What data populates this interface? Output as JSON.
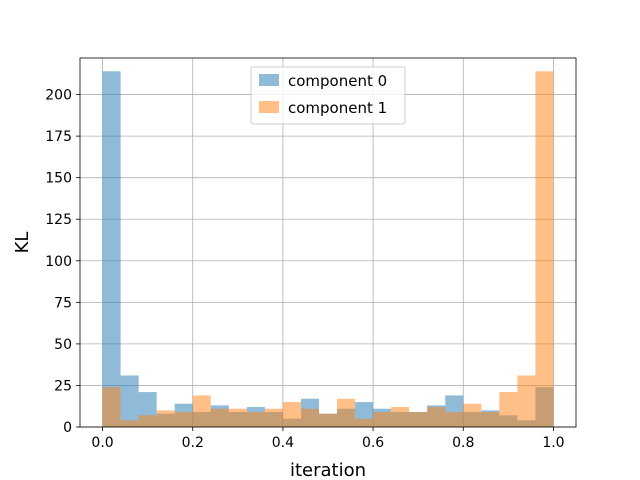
{
  "chart_data": {
    "type": "bar",
    "title": "",
    "xlabel": "iteration",
    "ylabel": "KL",
    "xlim": [
      -0.05,
      1.05
    ],
    "ylim": [
      0,
      222
    ],
    "grid": true,
    "legend_position": "top-center",
    "bin_edges": [
      0.0,
      0.04,
      0.08,
      0.12,
      0.16,
      0.2,
      0.24,
      0.28,
      0.32,
      0.36,
      0.4,
      0.44,
      0.48,
      0.52,
      0.56,
      0.6,
      0.64,
      0.68,
      0.72,
      0.76,
      0.8,
      0.84,
      0.88,
      0.92,
      0.96,
      1.0
    ],
    "x_ticks": [
      "0.0",
      "0.2",
      "0.4",
      "0.6",
      "0.8",
      "1.0"
    ],
    "x_tick_values": [
      0.0,
      0.2,
      0.4,
      0.6,
      0.8,
      1.0
    ],
    "y_ticks": [
      "0",
      "25",
      "50",
      "75",
      "100",
      "125",
      "150",
      "175",
      "200"
    ],
    "y_tick_values": [
      0,
      25,
      50,
      75,
      100,
      125,
      150,
      175,
      200
    ],
    "series": [
      {
        "name": "component 0",
        "color": "#1f77b4",
        "alpha": 0.5,
        "values": [
          214,
          31,
          21,
          8,
          14,
          9,
          13,
          9,
          12,
          9,
          5,
          17,
          8,
          11,
          15,
          11,
          9,
          9,
          13,
          19,
          9,
          10,
          7,
          4,
          24
        ]
      },
      {
        "name": "component 1",
        "color": "#ff7f0e",
        "alpha": 0.5,
        "values": [
          24,
          4,
          7,
          10,
          9,
          19,
          11,
          11,
          9,
          11,
          15,
          11,
          8,
          17,
          5,
          9,
          12,
          9,
          12,
          9,
          14,
          9,
          21,
          31,
          214
        ]
      }
    ]
  }
}
